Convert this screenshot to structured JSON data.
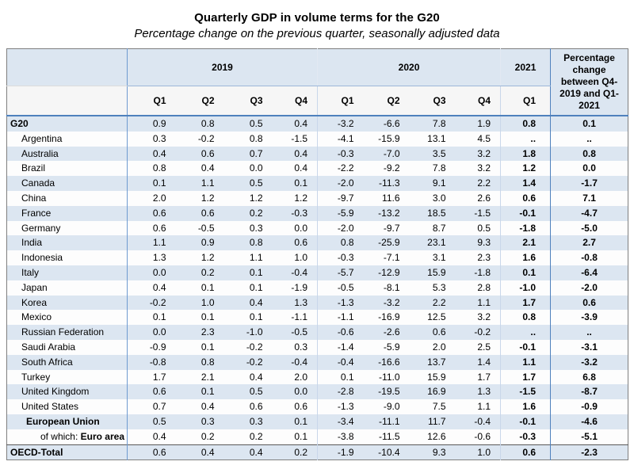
{
  "title": "Quarterly GDP in volume terms for the G20",
  "subtitle": "Percentage change on the previous quarter, seasonally adjusted data",
  "colors": {
    "stripe": "#dce6f1",
    "divider_blue": "#6f9ad0",
    "divider_strong": "#4f81bd",
    "dark_border": "#595959",
    "outer_border": "#7f7f7f"
  },
  "table": {
    "year_groups": [
      {
        "label": "2019",
        "span": 4
      },
      {
        "label": "2020",
        "span": 4
      },
      {
        "label": "2021",
        "span": 1
      }
    ],
    "quarter_headers": [
      "Q1",
      "Q2",
      "Q3",
      "Q4",
      "Q1",
      "Q2",
      "Q3",
      "Q4",
      "Q1"
    ],
    "change_header": "Percentage change between Q4-2019 and Q1-2021",
    "rows": [
      {
        "label": "G20",
        "style": "g20",
        "values": [
          "0.9",
          "0.8",
          "0.5",
          "0.4",
          "-3.2",
          "-6.6",
          "7.8",
          "1.9",
          "0.8"
        ],
        "change": "0.1"
      },
      {
        "label": "Argentina",
        "style": "country",
        "values": [
          "0.3",
          "-0.2",
          "0.8",
          "-1.5",
          "-4.1",
          "-15.9",
          "13.1",
          "4.5",
          ".."
        ],
        "change": ".."
      },
      {
        "label": "Australia",
        "style": "country",
        "values": [
          "0.4",
          "0.6",
          "0.7",
          "0.4",
          "-0.3",
          "-7.0",
          "3.5",
          "3.2",
          "1.8"
        ],
        "change": "0.8"
      },
      {
        "label": "Brazil",
        "style": "country",
        "values": [
          "0.8",
          "0.4",
          "0.0",
          "0.4",
          "-2.2",
          "-9.2",
          "7.8",
          "3.2",
          "1.2"
        ],
        "change": "0.0"
      },
      {
        "label": "Canada",
        "style": "country",
        "values": [
          "0.1",
          "1.1",
          "0.5",
          "0.1",
          "-2.0",
          "-11.3",
          "9.1",
          "2.2",
          "1.4"
        ],
        "change": "-1.7"
      },
      {
        "label": "China",
        "style": "country",
        "values": [
          "2.0",
          "1.2",
          "1.2",
          "1.2",
          "-9.7",
          "11.6",
          "3.0",
          "2.6",
          "0.6"
        ],
        "change": "7.1"
      },
      {
        "label": "France",
        "style": "country",
        "values": [
          "0.6",
          "0.6",
          "0.2",
          "-0.3",
          "-5.9",
          "-13.2",
          "18.5",
          "-1.5",
          "-0.1"
        ],
        "change": "-4.7"
      },
      {
        "label": "Germany",
        "style": "country",
        "values": [
          "0.6",
          "-0.5",
          "0.3",
          "0.0",
          "-2.0",
          "-9.7",
          "8.7",
          "0.5",
          "-1.8"
        ],
        "change": "-5.0"
      },
      {
        "label": "India",
        "style": "country",
        "values": [
          "1.1",
          "0.9",
          "0.8",
          "0.6",
          "0.8",
          "-25.9",
          "23.1",
          "9.3",
          "2.1"
        ],
        "change": "2.7"
      },
      {
        "label": "Indonesia",
        "style": "country",
        "values": [
          "1.3",
          "1.2",
          "1.1",
          "1.0",
          "-0.3",
          "-7.1",
          "3.1",
          "2.3",
          "1.6"
        ],
        "change": "-0.8"
      },
      {
        "label": "Italy",
        "style": "country",
        "values": [
          "0.0",
          "0.2",
          "0.1",
          "-0.4",
          "-5.7",
          "-12.9",
          "15.9",
          "-1.8",
          "0.1"
        ],
        "change": "-6.4"
      },
      {
        "label": "Japan",
        "style": "country",
        "values": [
          "0.4",
          "0.1",
          "0.1",
          "-1.9",
          "-0.5",
          "-8.1",
          "5.3",
          "2.8",
          "-1.0"
        ],
        "change": "-2.0"
      },
      {
        "label": "Korea",
        "style": "country",
        "values": [
          "-0.2",
          "1.0",
          "0.4",
          "1.3",
          "-1.3",
          "-3.2",
          "2.2",
          "1.1",
          "1.7"
        ],
        "change": "0.6"
      },
      {
        "label": "Mexico",
        "style": "country",
        "values": [
          "0.1",
          "0.1",
          "0.1",
          "-1.1",
          "-1.1",
          "-16.9",
          "12.5",
          "3.2",
          "0.8"
        ],
        "change": "-3.9"
      },
      {
        "label": "Russian Federation",
        "style": "country",
        "values": [
          "0.0",
          "2.3",
          "-1.0",
          "-0.5",
          "-0.6",
          "-2.6",
          "0.6",
          "-0.2",
          ".."
        ],
        "change": ".."
      },
      {
        "label": "Saudi Arabia",
        "style": "country",
        "values": [
          "-0.9",
          "0.1",
          "-0.2",
          "0.3",
          "-1.4",
          "-5.9",
          "2.0",
          "2.5",
          "-0.1"
        ],
        "change": "-3.1"
      },
      {
        "label": "South Africa",
        "style": "country",
        "values": [
          "-0.8",
          "0.8",
          "-0.2",
          "-0.4",
          "-0.4",
          "-16.6",
          "13.7",
          "1.4",
          "1.1"
        ],
        "change": "-3.2"
      },
      {
        "label": "Turkey",
        "style": "country",
        "values": [
          "1.7",
          "2.1",
          "0.4",
          "2.0",
          "0.1",
          "-11.0",
          "15.9",
          "1.7",
          "1.7"
        ],
        "change": "6.8"
      },
      {
        "label": "United Kingdom",
        "style": "country",
        "values": [
          "0.6",
          "0.1",
          "0.5",
          "0.0",
          "-2.8",
          "-19.5",
          "16.9",
          "1.3",
          "-1.5"
        ],
        "change": "-8.7"
      },
      {
        "label": "United States",
        "style": "country",
        "values": [
          "0.7",
          "0.4",
          "0.6",
          "0.6",
          "-1.3",
          "-9.0",
          "7.5",
          "1.1",
          "1.6"
        ],
        "change": "-0.9"
      },
      {
        "label": "European Union",
        "style": "eu",
        "values": [
          "0.5",
          "0.3",
          "0.3",
          "0.1",
          "-3.4",
          "-11.1",
          "11.7",
          "-0.4",
          "-0.1"
        ],
        "change": "-4.6"
      },
      {
        "label_prefix": "of which: ",
        "label": "Euro area",
        "style": "euro",
        "values": [
          "0.4",
          "0.2",
          "0.2",
          "0.1",
          "-3.8",
          "-11.5",
          "12.6",
          "-0.6",
          "-0.3"
        ],
        "change": "-5.1"
      },
      {
        "label": "OECD-Total",
        "style": "oecd",
        "values": [
          "0.6",
          "0.4",
          "0.4",
          "0.2",
          "-1.9",
          "-10.4",
          "9.3",
          "1.0",
          "0.6"
        ],
        "change": "-2.3"
      }
    ]
  }
}
